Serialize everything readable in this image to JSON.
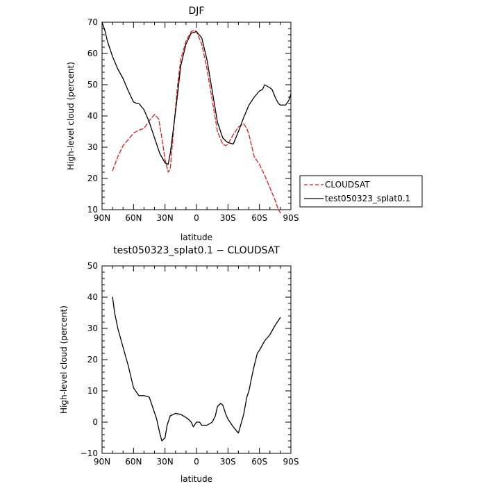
{
  "chart_data": [
    {
      "type": "line",
      "title": "DJF",
      "xlabel": "latitude",
      "ylabel": "High-level cloud (percent)",
      "xlim": [
        90,
        -90
      ],
      "ylim": [
        10,
        70
      ],
      "xticks": [
        90,
        60,
        30,
        0,
        -30,
        -60,
        -90
      ],
      "xtick_labels": [
        "90N",
        "60N",
        "30N",
        "0",
        "30S",
        "60S",
        "90S"
      ],
      "yticks": [
        10,
        20,
        30,
        40,
        50,
        60,
        70
      ],
      "ytick_labels": [
        "10",
        "20",
        "30",
        "40",
        "50",
        "60",
        "70"
      ],
      "legend_position": "right",
      "series": [
        {
          "name": "CLOUDSAT",
          "color": "#e41a1c",
          "dash": "dashed",
          "x": [
            80,
            75,
            70,
            65,
            60,
            55,
            50,
            45,
            40,
            36,
            33,
            30,
            27,
            25,
            22,
            18,
            15,
            10,
            5,
            2,
            0,
            -5,
            -10,
            -15,
            -20,
            -25,
            -28,
            -30,
            -35,
            -40,
            -45,
            -48,
            -50,
            -55,
            -60,
            -65,
            -70,
            -75,
            -78,
            -80
          ],
          "y": [
            22.5,
            27,
            30.5,
            32.5,
            34.5,
            35.5,
            36,
            38.5,
            40.5,
            39,
            33,
            26,
            22,
            23,
            35,
            50,
            58,
            64,
            67,
            67.5,
            67,
            63,
            55,
            45,
            35,
            31,
            30.5,
            31,
            34,
            36.5,
            37.5,
            36,
            34,
            27,
            24.5,
            21,
            17,
            13,
            10,
            9
          ]
        },
        {
          "name": "test050323_splat0.1",
          "color": "#000000",
          "dash": "solid",
          "x": [
            90,
            87,
            85,
            80,
            75,
            70,
            65,
            60,
            57,
            55,
            50,
            45,
            40,
            35,
            30,
            27,
            25,
            22,
            18,
            15,
            10,
            5,
            0,
            -5,
            -10,
            -15,
            -20,
            -25,
            -28,
            -30,
            -35,
            -40,
            -45,
            -50,
            -55,
            -60,
            -63,
            -65,
            -70,
            -72,
            -75,
            -78,
            -80,
            -85,
            -88,
            -90
          ],
          "y": [
            70,
            67,
            64,
            59,
            55,
            52,
            48,
            44.5,
            44,
            44,
            42,
            38,
            33,
            28,
            25,
            24.5,
            28,
            36,
            47,
            56,
            63,
            66.5,
            67,
            65,
            58,
            48,
            38,
            33,
            32,
            31.5,
            31,
            35,
            39.5,
            43.5,
            46,
            48,
            48.5,
            50,
            49,
            48.5,
            46,
            44,
            43.5,
            43.5,
            45,
            47
          ]
        }
      ]
    },
    {
      "type": "line",
      "title": "test050323_splat0.1 − CLOUDSAT",
      "xlabel": "latitude",
      "ylabel": "High-level cloud (percent)",
      "xlim": [
        90,
        -90
      ],
      "ylim": [
        -10,
        50
      ],
      "xticks": [
        90,
        60,
        30,
        0,
        -30,
        -60,
        -90
      ],
      "xtick_labels": [
        "90N",
        "60N",
        "30N",
        "0",
        "30S",
        "60S",
        "90S"
      ],
      "yticks": [
        -10,
        0,
        10,
        20,
        30,
        40,
        50
      ],
      "ytick_labels": [
        "−10",
        "0",
        "10",
        "20",
        "30",
        "40",
        "50"
      ],
      "series": [
        {
          "color": "#000000",
          "dash": "solid",
          "x": [
            80,
            78,
            75,
            70,
            65,
            60,
            55,
            50,
            45,
            40,
            38,
            35,
            33,
            30,
            28,
            25,
            20,
            15,
            10,
            8,
            5,
            3,
            0,
            -3,
            -5,
            -8,
            -10,
            -15,
            -18,
            -20,
            -23,
            -25,
            -28,
            -30,
            -35,
            -40,
            -45,
            -48,
            -50,
            -53,
            -55,
            -58,
            -60,
            -65,
            -70,
            -75,
            -80
          ],
          "y": [
            40,
            35,
            30,
            24,
            18,
            11,
            8.5,
            8.5,
            8,
            3,
            1,
            -3.5,
            -6,
            -5,
            -1,
            2,
            2.8,
            2.5,
            1.5,
            1,
            0,
            -1.5,
            0,
            0,
            -1,
            -1,
            -1,
            0,
            2,
            5,
            6,
            5.5,
            2.5,
            1,
            -1.5,
            -3.5,
            2.5,
            8,
            10,
            15,
            18,
            22,
            23,
            26,
            28,
            31,
            33.5
          ]
        }
      ]
    }
  ]
}
